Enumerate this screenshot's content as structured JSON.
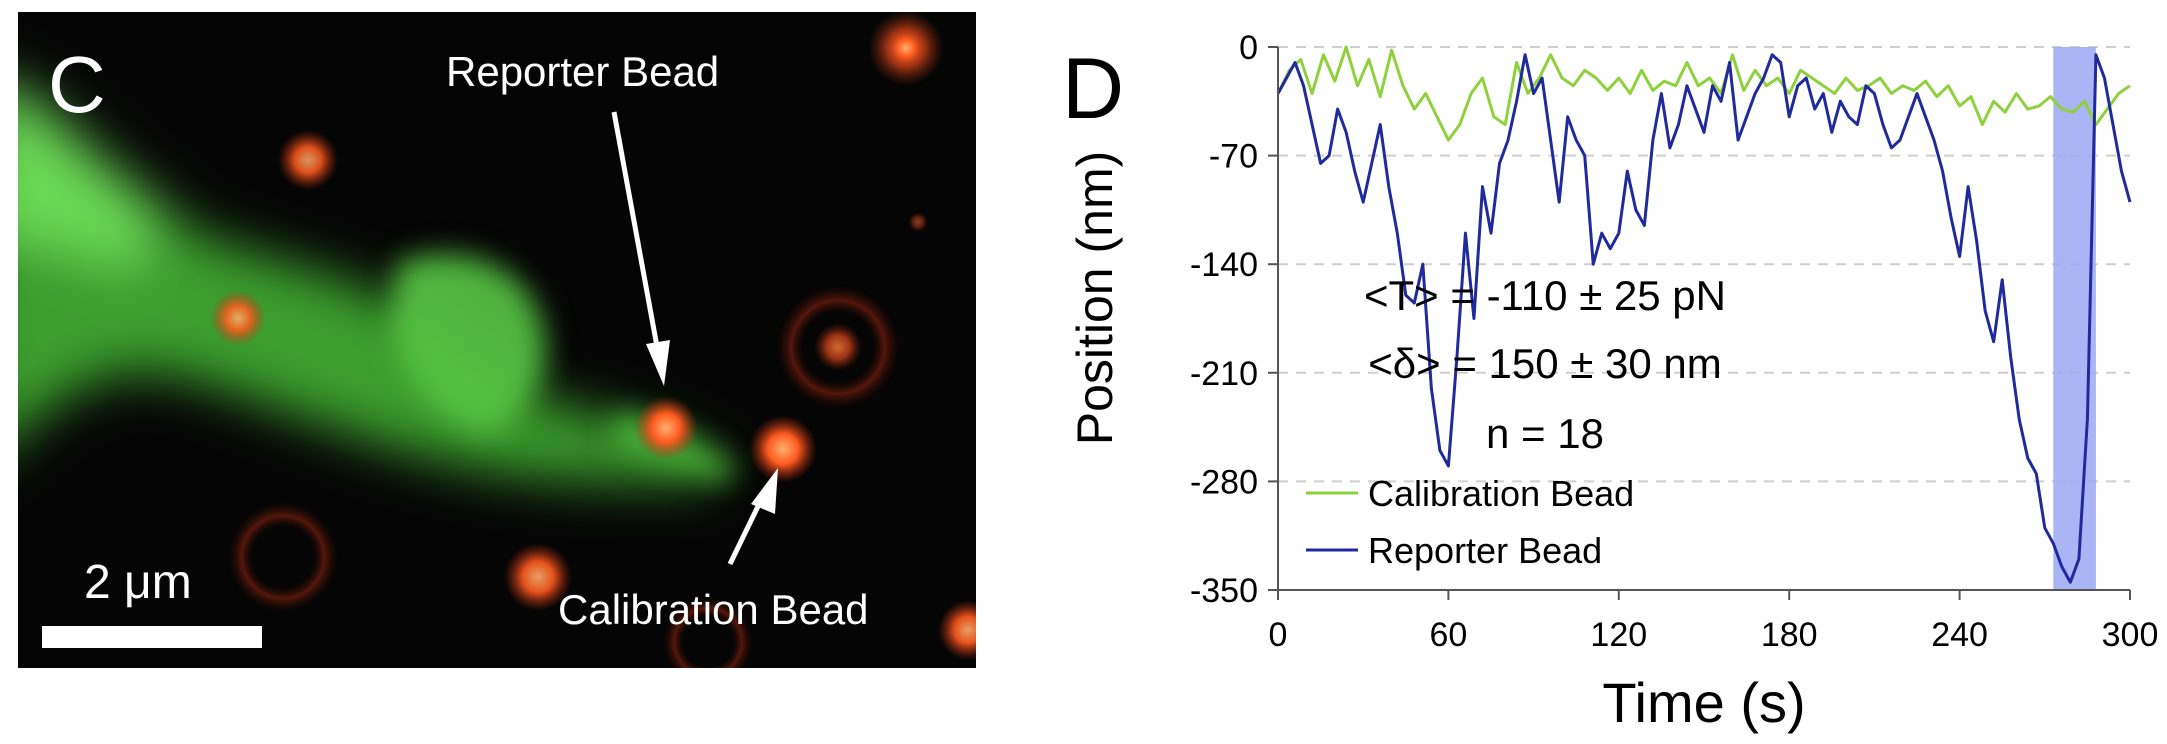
{
  "panel_c": {
    "label": "C",
    "annotations": {
      "reporter": "Reporter Bead",
      "calibration": "Calibration Bead"
    },
    "scale_bar": "2 μm",
    "colors": {
      "background": "#050505",
      "membrane": "#5fd34c",
      "bead": "#ff5a1f"
    }
  },
  "panel_d": {
    "label": "D",
    "stats": {
      "tension": "<T> = -110 ± 25 pN",
      "displacement": "<δ> = 150 ± 30 nm",
      "n": "n = 18"
    }
  },
  "chart_data": {
    "type": "line",
    "xlabel": "Time (s)",
    "ylabel": "Position (nm)",
    "xlim": [
      0,
      300
    ],
    "ylim": [
      -350,
      0
    ],
    "xticks": [
      0,
      60,
      120,
      180,
      240,
      300
    ],
    "yticks": [
      0,
      -70,
      -140,
      -210,
      -280,
      -350
    ],
    "grid": "horizontal dashed",
    "legend_position": "bottom-left",
    "highlight_region": {
      "x": [
        273,
        288
      ],
      "color": "#9aa8f2"
    },
    "series": [
      {
        "name": "Calibration Bead",
        "color": "#8fd13c",
        "x": [
          0,
          4,
          8,
          12,
          16,
          20,
          24,
          28,
          32,
          36,
          40,
          44,
          48,
          52,
          56,
          60,
          64,
          68,
          72,
          76,
          80,
          84,
          88,
          92,
          96,
          100,
          104,
          108,
          112,
          116,
          120,
          124,
          128,
          132,
          136,
          140,
          144,
          148,
          152,
          156,
          160,
          164,
          168,
          172,
          176,
          180,
          184,
          188,
          192,
          196,
          200,
          204,
          208,
          212,
          216,
          220,
          224,
          228,
          232,
          236,
          240,
          244,
          248,
          252,
          256,
          260,
          264,
          268,
          272,
          276,
          280,
          284,
          288,
          292,
          296,
          300
        ],
        "y": [
          -30,
          -15,
          -8,
          -30,
          -5,
          -22,
          0,
          -25,
          -8,
          -32,
          -2,
          -25,
          -40,
          -30,
          -45,
          -60,
          -50,
          -30,
          -20,
          -45,
          -50,
          -10,
          -30,
          -20,
          -5,
          -20,
          -25,
          -15,
          -20,
          -28,
          -20,
          -30,
          -15,
          -28,
          -22,
          -25,
          -10,
          -25,
          -20,
          -30,
          -5,
          -28,
          -15,
          -25,
          -20,
          -30,
          -15,
          -20,
          -25,
          -30,
          -20,
          -28,
          -25,
          -20,
          -30,
          -25,
          -28,
          -22,
          -32,
          -25,
          -38,
          -32,
          -50,
          -35,
          -42,
          -30,
          -40,
          -38,
          -32,
          -40,
          -42,
          -35,
          -50,
          -40,
          -30,
          -25
        ]
      },
      {
        "name": "Reporter Bead",
        "color": "#1f2b9c",
        "x": [
          0,
          3,
          6,
          9,
          12,
          15,
          18,
          21,
          24,
          27,
          30,
          33,
          36,
          39,
          42,
          45,
          48,
          51,
          54,
          57,
          60,
          63,
          66,
          69,
          72,
          75,
          78,
          81,
          84,
          87,
          90,
          93,
          96,
          99,
          102,
          105,
          108,
          111,
          114,
          117,
          120,
          123,
          126,
          129,
          132,
          135,
          138,
          141,
          144,
          147,
          150,
          153,
          156,
          159,
          162,
          165,
          168,
          171,
          174,
          177,
          180,
          183,
          186,
          189,
          192,
          195,
          198,
          201,
          204,
          207,
          210,
          213,
          216,
          219,
          222,
          225,
          228,
          231,
          234,
          237,
          240,
          243,
          246,
          249,
          252,
          255,
          258,
          261,
          264,
          267,
          270,
          273,
          276,
          279,
          282,
          285,
          288,
          291,
          294,
          297,
          300
        ],
        "y": [
          -30,
          -20,
          -10,
          -25,
          -50,
          -75,
          -70,
          -40,
          -55,
          -80,
          -100,
          -75,
          -50,
          -90,
          -120,
          -160,
          -165,
          -140,
          -220,
          -260,
          -270,
          -200,
          -120,
          -175,
          -90,
          -120,
          -75,
          -60,
          -35,
          -5,
          -30,
          -20,
          -60,
          -100,
          -45,
          -60,
          -70,
          -140,
          -120,
          -130,
          -120,
          -80,
          -105,
          -115,
          -60,
          -30,
          -65,
          -50,
          -25,
          -40,
          -55,
          -25,
          -35,
          -10,
          -60,
          -45,
          -30,
          -20,
          -5,
          -10,
          -45,
          -25,
          -20,
          -40,
          -30,
          -55,
          -35,
          -45,
          -50,
          -25,
          -30,
          -50,
          -65,
          -60,
          -45,
          -30,
          -45,
          -60,
          -80,
          -110,
          -135,
          -90,
          -125,
          -170,
          -190,
          -150,
          -200,
          -240,
          -265,
          -275,
          -310,
          -320,
          -335,
          -345,
          -330,
          -240,
          -5,
          -20,
          -50,
          -80,
          -100
        ]
      }
    ]
  }
}
